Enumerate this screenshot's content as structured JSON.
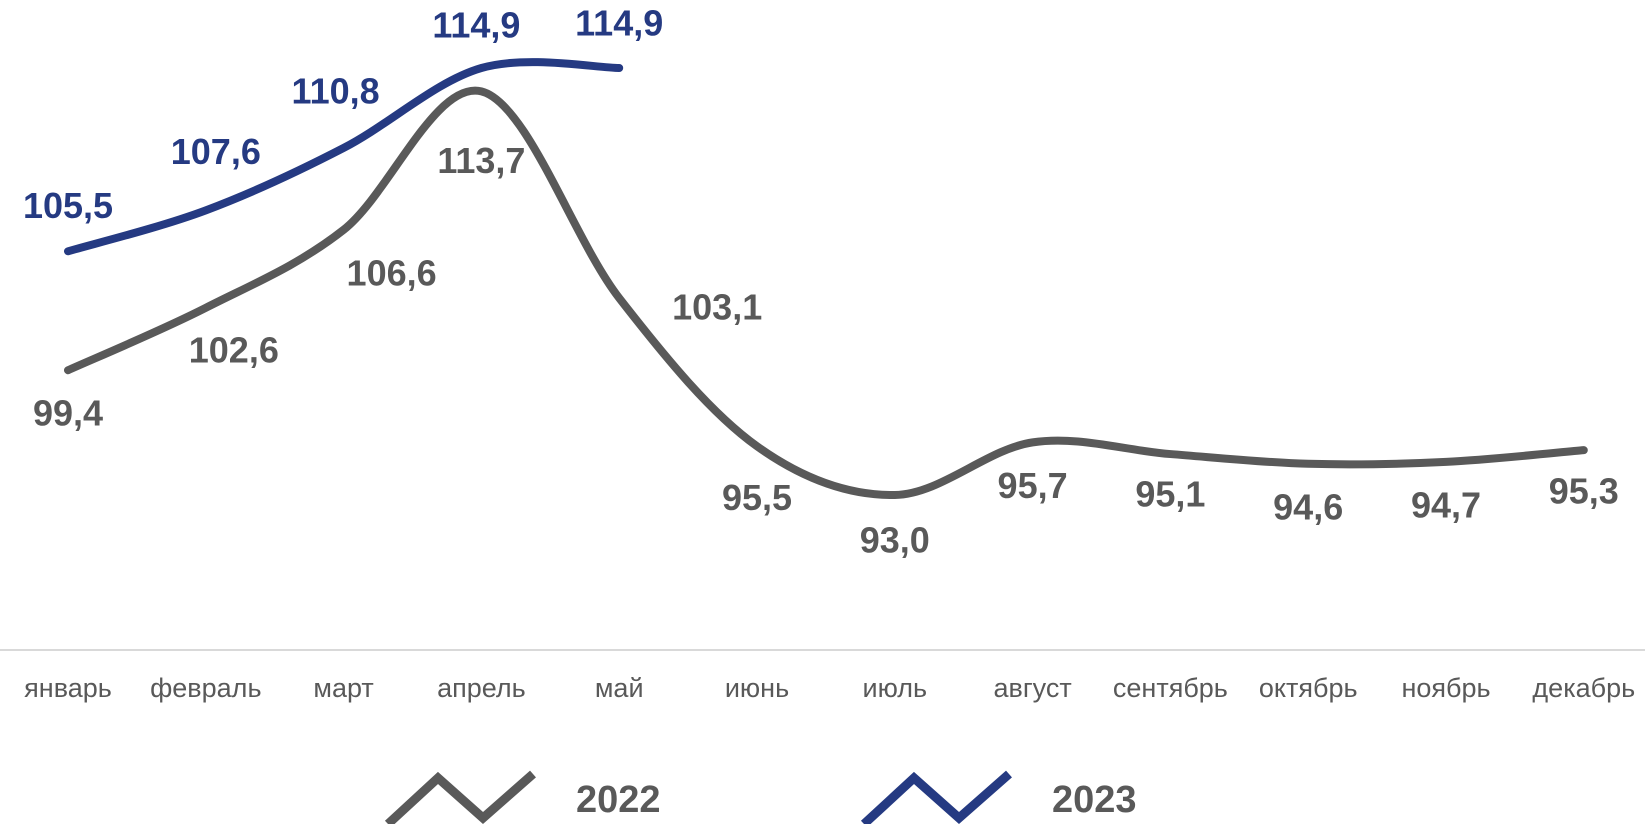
{
  "chart_data": {
    "type": "line",
    "categories": [
      "январь",
      "февраль",
      "март",
      "апрель",
      "май",
      "июнь",
      "июль",
      "август",
      "сентябрь",
      "октябрь",
      "ноябрь",
      "декабрь"
    ],
    "series": [
      {
        "name": "2022",
        "color": "#595959",
        "values": [
          99.4,
          102.6,
          106.6,
          113.7,
          103.1,
          95.5,
          93.0,
          95.7,
          95.1,
          94.6,
          94.7,
          95.3
        ],
        "value_labels": [
          "99,4",
          "102,6",
          "106,6",
          "113,7",
          "103,1",
          "95,5",
          "93,0",
          "95,7",
          "95,1",
          "94,6",
          "94,7",
          "95,3"
        ]
      },
      {
        "name": "2023",
        "color": "#253a82",
        "values": [
          105.5,
          107.6,
          110.8,
          114.9,
          114.9,
          null,
          null,
          null,
          null,
          null,
          null,
          null
        ],
        "value_labels": [
          "105,5",
          "107,6",
          "110,8",
          "114,9",
          "114,9",
          null,
          null,
          null,
          null,
          null,
          null,
          null
        ]
      }
    ],
    "legend": "bottom"
  }
}
